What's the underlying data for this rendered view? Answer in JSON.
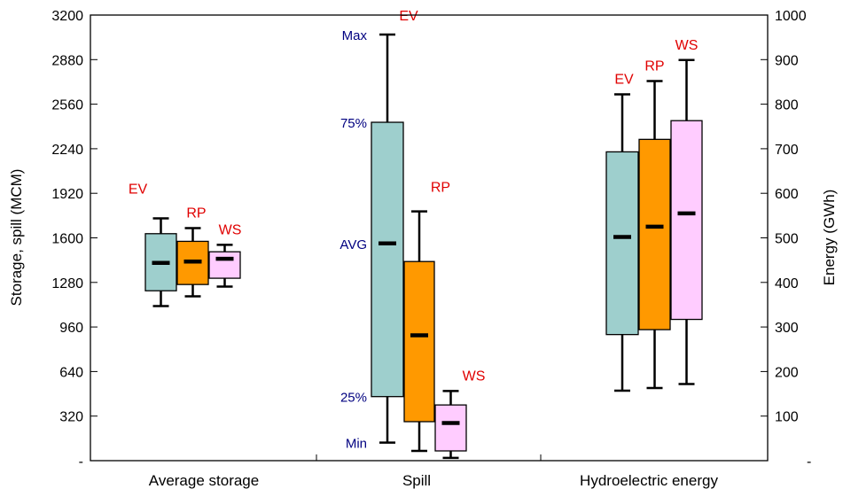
{
  "chart_data": {
    "type": "boxplot",
    "title": "",
    "left_axis": {
      "label": "Storage, spill (MCM)",
      "ylim": [
        0,
        3200
      ],
      "ticks": [
        320,
        640,
        960,
        1280,
        1600,
        1920,
        2240,
        2560,
        2880,
        3200
      ],
      "tick_labels": [
        "320",
        "640",
        "960",
        "1280",
        "1600",
        "1920",
        "2240",
        "2560",
        "2880",
        "3200"
      ],
      "bottom_tick_label": "-"
    },
    "right_axis": {
      "label": "Energy (GWh)",
      "ylim": [
        0,
        1000
      ],
      "ticks": [
        100,
        200,
        300,
        400,
        500,
        600,
        700,
        800,
        900,
        1000
      ],
      "tick_labels": [
        "100",
        "200",
        "300",
        "400",
        "500",
        "600",
        "700",
        "800",
        "900",
        "1000"
      ],
      "bottom_tick_label": "-"
    },
    "colors": {
      "EV": "#9ecfcd",
      "RP": "#ff9900",
      "WS": "#ffccff",
      "series_label": "#e00000",
      "stat_label": "#000080"
    },
    "groups": [
      {
        "name": "Average storage",
        "axis": "left",
        "boxes": [
          {
            "series": "EV",
            "min": 1110,
            "q1": 1220,
            "avg": 1420,
            "q3": 1630,
            "max": 1740
          },
          {
            "series": "RP",
            "min": 1180,
            "q1": 1265,
            "avg": 1430,
            "q3": 1575,
            "max": 1670
          },
          {
            "series": "WS",
            "min": 1250,
            "q1": 1310,
            "avg": 1450,
            "q3": 1500,
            "max": 1550
          }
        ]
      },
      {
        "name": "Spill",
        "axis": "left",
        "boxes": [
          {
            "series": "EV",
            "min": 130,
            "q1": 460,
            "avg": 1560,
            "q3": 2430,
            "max": 3060
          },
          {
            "series": "RP",
            "min": 70,
            "q1": 280,
            "avg": 900,
            "q3": 1430,
            "max": 1790
          },
          {
            "series": "WS",
            "min": 20,
            "q1": 70,
            "avg": 270,
            "q3": 400,
            "max": 500
          }
        ]
      },
      {
        "name": "Hydroelectric energy",
        "axis": "right",
        "boxes": [
          {
            "series": "EV",
            "min": 157,
            "q1": 283,
            "avg": 502,
            "q3": 693,
            "max": 822
          },
          {
            "series": "RP",
            "min": 163,
            "q1": 294,
            "avg": 525,
            "q3": 721,
            "max": 852
          },
          {
            "series": "WS",
            "min": 172,
            "q1": 317,
            "avg": 555,
            "q3": 763,
            "max": 899
          }
        ]
      }
    ],
    "stat_labels": {
      "max": "Max",
      "q3": "75%",
      "avg": "AVG",
      "q1": "25%",
      "min": "Min"
    }
  }
}
